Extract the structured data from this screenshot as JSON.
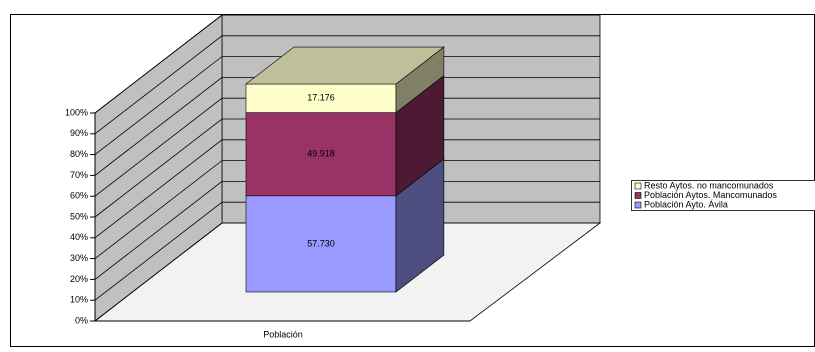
{
  "chart_data": {
    "type": "bar3d",
    "stacking": "percent",
    "categories": [
      "Población"
    ],
    "series": [
      {
        "name": "Población Ayto. Ávila",
        "color": "#9999ff",
        "values": [
          57730
        ],
        "value_labels": [
          "57.730"
        ]
      },
      {
        "name": "Población Aytos. Mancomunados",
        "color": "#993366",
        "values": [
          49918
        ],
        "value_labels": [
          "49.918"
        ]
      },
      {
        "name": "Resto Aytos. no mancomunados",
        "color": "#ffffcc",
        "values": [
          17176
        ],
        "value_labels": [
          "17.176"
        ]
      }
    ],
    "ylim": [
      0,
      100
    ],
    "yticks": [
      {
        "value": 0,
        "label": "0%"
      },
      {
        "value": 10,
        "label": "10%"
      },
      {
        "value": 20,
        "label": "20%"
      },
      {
        "value": 30,
        "label": "30%"
      },
      {
        "value": 40,
        "label": "40%"
      },
      {
        "value": 50,
        "label": "50%"
      },
      {
        "value": 60,
        "label": "60%"
      },
      {
        "value": 70,
        "label": "70%"
      },
      {
        "value": 80,
        "label": "80%"
      },
      {
        "value": 90,
        "label": "90%"
      },
      {
        "value": 100,
        "label": "100%"
      }
    ],
    "grid": true,
    "legend": "right"
  }
}
